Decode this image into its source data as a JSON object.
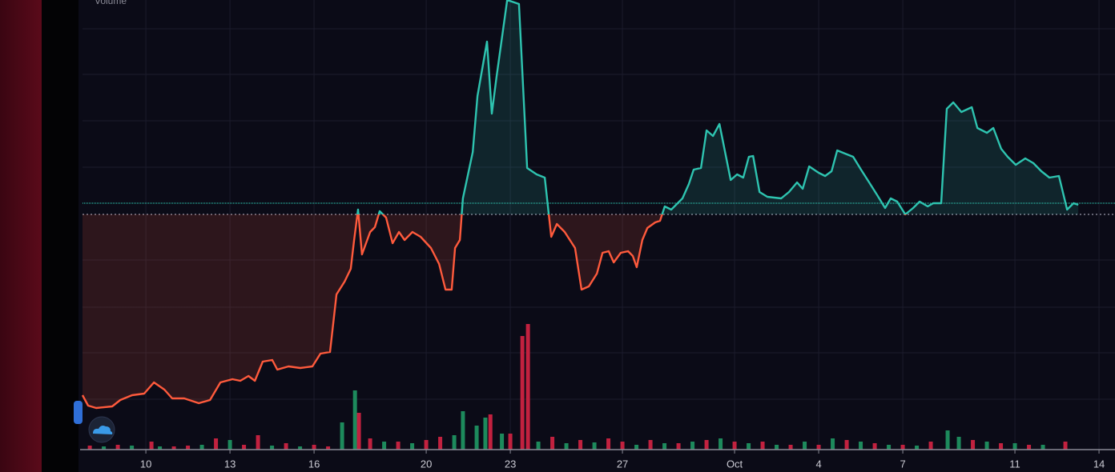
{
  "chart_data": {
    "type": "line",
    "label": "Volume",
    "x": [
      7.74,
      7.94,
      8.23,
      8.8,
      9.09,
      9.51,
      9.94,
      10.29,
      10.66,
      10.94,
      11.37,
      11.89,
      12.29,
      12.66,
      13.09,
      13.37,
      13.66,
      13.89,
      14.17,
      14.51,
      14.69,
      15.09,
      15.51,
      15.94,
      16.23,
      16.57,
      16.8,
      17.09,
      17.31,
      17.43,
      17.57,
      17.71,
      18,
      18.17,
      18.34,
      18.57,
      18.8,
      19.03,
      19.23,
      19.51,
      19.8,
      20.17,
      20.46,
      20.69,
      20.91,
      21.03,
      21.2,
      21.31,
      21.51,
      21.66,
      21.83,
      22.17,
      22.34,
      22.51,
      22.89,
      23.31,
      23.6,
      23.94,
      24.23,
      24.46,
      24.66,
      24.94,
      25.31,
      25.54,
      25.8,
      26.09,
      26.29,
      26.51,
      26.69,
      26.94,
      27.2,
      27.37,
      27.51,
      27.71,
      27.89,
      28.17,
      28.34,
      28.51,
      28.74,
      29.14,
      29.37,
      29.54,
      29.8,
      30,
      30.23,
      30.46,
      30.66,
      30.86,
      31.09,
      31.31,
      31.51,
      31.66,
      31.89,
      32.17,
      32.66,
      32.94,
      33.23,
      33.43,
      33.66,
      34,
      34.23,
      34.46,
      34.66,
      34.94,
      35.23,
      35.51,
      35.8,
      36.09,
      36.37,
      36.57,
      36.8,
      37.09,
      37.37,
      37.6,
      37.89,
      38.09,
      38.37,
      38.57,
      38.8,
      39.09,
      39.46,
      39.66,
      40,
      40.23,
      40.51,
      40.74,
      41.03,
      41.37,
      41.66,
      41.94,
      42.23,
      42.57,
      42.86,
      43.09,
      43.26
    ],
    "series": [
      {
        "color_above": "#2ec4b0",
        "color_below": "#ff5a3c",
        "values": [
          68,
          55,
          52,
          54,
          62,
          68,
          70,
          84,
          75,
          64,
          64,
          58,
          62,
          84,
          88,
          86,
          92,
          86,
          110,
          112,
          100,
          104,
          102,
          104,
          120,
          122,
          194,
          210,
          226,
          262,
          300,
          244,
          272,
          278,
          298,
          290,
          258,
          272,
          262,
          272,
          266,
          252,
          232,
          200,
          200,
          252,
          262,
          314,
          347,
          372,
          442,
          510,
          420,
          466,
          562,
          557,
          352,
          344,
          340,
          266,
          282,
          272,
          252,
          200,
          204,
          220,
          246,
          248,
          234,
          246,
          248,
          242,
          228,
          262,
          277,
          284,
          286,
          304,
          300,
          314,
          332,
          350,
          352,
          399,
          392,
          407,
          372,
          337,
          344,
          340,
          366,
          367,
          322,
          316,
          314,
          322,
          334,
          326,
          354,
          346,
          342,
          348,
          374,
          370,
          366,
          350,
          334,
          318,
          302,
          314,
          310,
          294,
          302,
          310,
          304,
          308,
          308,
          426,
          434,
          422,
          428,
          402,
          396,
          402,
          376,
          366,
          356,
          364,
          358,
          348,
          340,
          342,
          300,
          308,
          306
        ]
      }
    ],
    "volume": [
      {
        "color": "#1d8a5c",
        "axis": "y2",
        "x": [
          8.5,
          9.5,
          10.5,
          12,
          13,
          14.5,
          15.5,
          17,
          17.46,
          18.5,
          19.5,
          21,
          21.31,
          21.8,
          22.11,
          22.7,
          24,
          25,
          26,
          27.5,
          28.5,
          29.5,
          30.5,
          31.5,
          32.5,
          33.5,
          34.5,
          35.5,
          36.5,
          37.5,
          38.6,
          39,
          40,
          41,
          42
        ],
        "values": [
          4,
          5,
          4,
          6,
          12,
          5,
          4,
          34,
          74,
          10,
          8,
          18,
          48,
          30,
          40,
          20,
          10,
          8,
          9,
          6,
          8,
          10,
          14,
          8,
          6,
          10,
          14,
          10,
          6,
          5,
          24,
          16,
          10,
          8,
          6
        ]
      },
      {
        "color": "#c2213f",
        "axis": "y2",
        "x": [
          8,
          9,
          10.2,
          11,
          11.5,
          12.5,
          13.5,
          14,
          15,
          16,
          16.5,
          17.6,
          18,
          19,
          20,
          20.5,
          22.29,
          23,
          23.43,
          23.63,
          24.5,
          25.5,
          26.5,
          27,
          28,
          29,
          30,
          31,
          32,
          33,
          34,
          35,
          36,
          37,
          38,
          39.5,
          40.5,
          41.5,
          42.8
        ],
        "values": [
          5,
          6,
          10,
          4,
          5,
          14,
          6,
          18,
          8,
          6,
          4,
          46,
          14,
          10,
          12,
          16,
          44,
          20,
          142,
          157,
          16,
          12,
          14,
          10,
          12,
          8,
          12,
          10,
          10,
          6,
          6,
          12,
          8,
          6,
          10,
          12,
          8,
          6,
          10
        ]
      }
    ],
    "reference_line": 294,
    "last_price_line": 308,
    "xlim": [
      7.74,
      44.57
    ],
    "ylim": [
      0,
      562
    ],
    "y2lim": [
      0,
      562
    ],
    "xticks": [
      10,
      13,
      16,
      20,
      23,
      27,
      {
        "value": 31,
        "label": "Oct"
      },
      {
        "value": 34,
        "label": "4"
      },
      {
        "value": 37,
        "label": "7"
      },
      {
        "value": 41,
        "label": "11"
      },
      {
        "value": 44,
        "label": "14"
      }
    ],
    "grid": true
  }
}
